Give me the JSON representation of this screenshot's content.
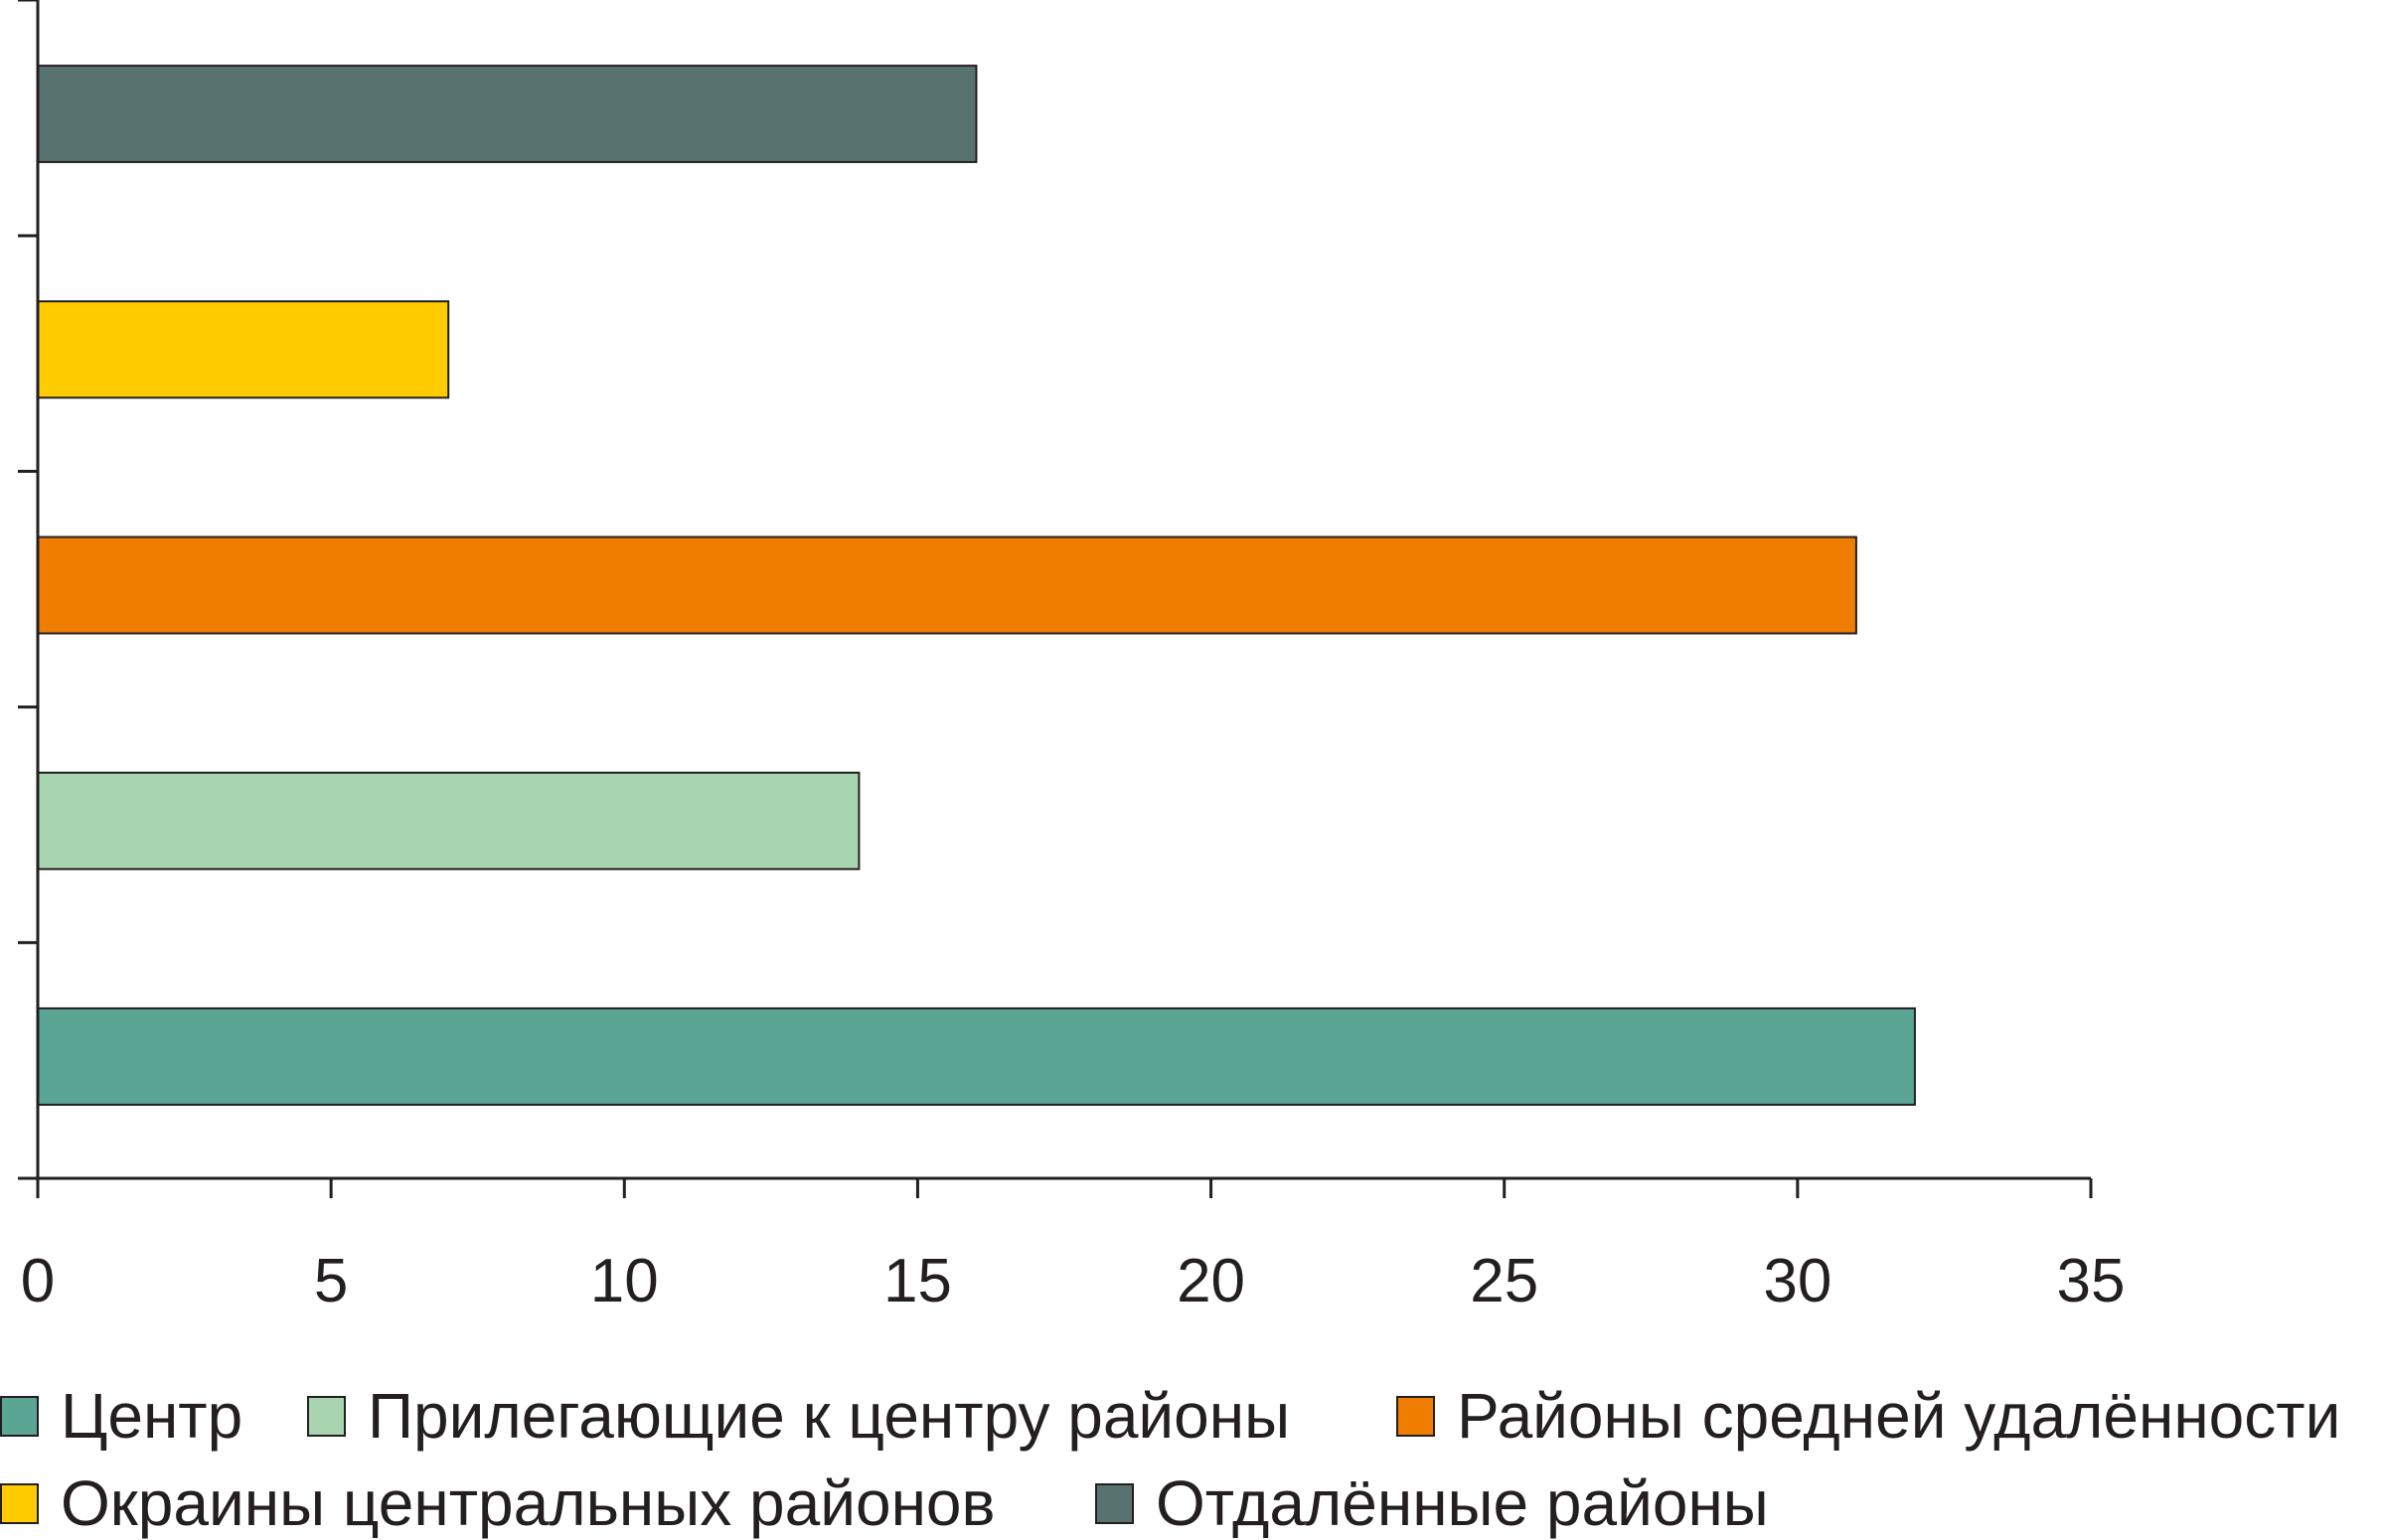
{
  "chart_data": {
    "type": "bar",
    "orientation": "horizontal",
    "title": "",
    "xlabel": "",
    "ylabel": "",
    "xlim": [
      0,
      35
    ],
    "x_ticks": [
      "0",
      "5",
      "10",
      "15",
      "20",
      "25",
      "30",
      "35"
    ],
    "grid": false,
    "legend_position": "bottom",
    "series": [
      {
        "name": "Центр",
        "value": 32,
        "color": "#5ba595"
      },
      {
        "name": "Прилегающие к центру районы",
        "value": 14,
        "color": "#a8d5b0"
      },
      {
        "name": "Районы средней удалённости",
        "value": 31,
        "color": "#ef7d00"
      },
      {
        "name": "Окраины центральных районов",
        "value": 7,
        "color": "#ffcc00"
      },
      {
        "name": "Отдалённые районы",
        "value": 16,
        "color": "#587270"
      }
    ]
  }
}
